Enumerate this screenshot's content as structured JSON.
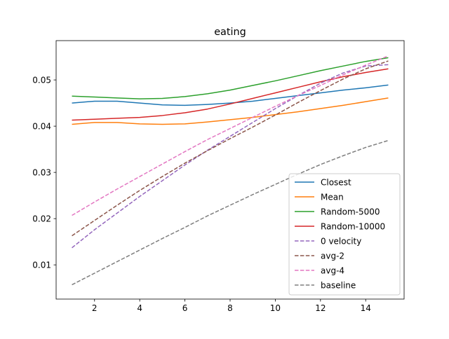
{
  "chart_data": {
    "type": "line",
    "title": "eating",
    "xlabel": "",
    "ylabel": "",
    "xlim": [
      0.3,
      15.7
    ],
    "ylim": [
      0.0026,
      0.0585
    ],
    "xticks": [
      2,
      4,
      6,
      8,
      10,
      12,
      14
    ],
    "xtick_labels": [
      "2",
      "4",
      "6",
      "8",
      "10",
      "12",
      "14"
    ],
    "yticks": [
      0.01,
      0.02,
      0.03,
      0.04,
      0.05
    ],
    "ytick_labels": [
      "0.01",
      "0.02",
      "0.03",
      "0.04",
      "0.05"
    ],
    "grid": false,
    "legend_position": "lower-right",
    "x": [
      1,
      2,
      3,
      4,
      5,
      6,
      7,
      8,
      9,
      10,
      11,
      12,
      13,
      14,
      15
    ],
    "series": [
      {
        "name": "Closest",
        "color": "#1f77b4",
        "style": "solid",
        "values": [
          0.045,
          0.0454,
          0.0454,
          0.045,
          0.0446,
          0.0445,
          0.0447,
          0.045,
          0.0454,
          0.046,
          0.0466,
          0.0472,
          0.0478,
          0.0483,
          0.0489
        ]
      },
      {
        "name": "Mean",
        "color": "#ff7f0e",
        "style": "solid",
        "values": [
          0.0404,
          0.0408,
          0.0408,
          0.0405,
          0.0404,
          0.0405,
          0.0409,
          0.0414,
          0.0419,
          0.0425,
          0.0431,
          0.0438,
          0.0445,
          0.0453,
          0.0461
        ]
      },
      {
        "name": "Random-5000",
        "color": "#2ca02c",
        "style": "solid",
        "values": [
          0.0465,
          0.0463,
          0.0461,
          0.0459,
          0.046,
          0.0464,
          0.047,
          0.0478,
          0.0488,
          0.0498,
          0.0509,
          0.052,
          0.053,
          0.054,
          0.0548
        ]
      },
      {
        "name": "Random-10000",
        "color": "#d62728",
        "style": "solid",
        "values": [
          0.0413,
          0.0415,
          0.0417,
          0.0419,
          0.0423,
          0.0429,
          0.0437,
          0.0448,
          0.046,
          0.0472,
          0.0484,
          0.0496,
          0.0507,
          0.0516,
          0.0524
        ]
      },
      {
        "name": "0 velocity",
        "color": "#9467bd",
        "style": "dashed",
        "values": [
          0.0137,
          0.0176,
          0.0212,
          0.0248,
          0.0282,
          0.0316,
          0.0348,
          0.0378,
          0.0408,
          0.0438,
          0.0466,
          0.0493,
          0.0515,
          0.053,
          0.0533
        ]
      },
      {
        "name": "avg-2",
        "color": "#8c564b",
        "style": "dashed",
        "values": [
          0.0163,
          0.0196,
          0.0229,
          0.0261,
          0.0291,
          0.032,
          0.0347,
          0.0373,
          0.0398,
          0.0424,
          0.0451,
          0.0477,
          0.0502,
          0.0524,
          0.0541
        ]
      },
      {
        "name": "avg-4",
        "color": "#e377c2",
        "style": "dashed",
        "values": [
          0.0207,
          0.0236,
          0.0264,
          0.0291,
          0.0318,
          0.0345,
          0.0371,
          0.0395,
          0.0419,
          0.0443,
          0.0466,
          0.0488,
          0.0511,
          0.0532,
          0.0552
        ]
      },
      {
        "name": "baseline",
        "color": "#7f7f7f",
        "style": "dashed",
        "values": [
          0.0057,
          0.0082,
          0.0107,
          0.0132,
          0.0157,
          0.0181,
          0.0206,
          0.0229,
          0.0252,
          0.0274,
          0.0296,
          0.0317,
          0.0336,
          0.0354,
          0.0369
        ]
      }
    ]
  }
}
